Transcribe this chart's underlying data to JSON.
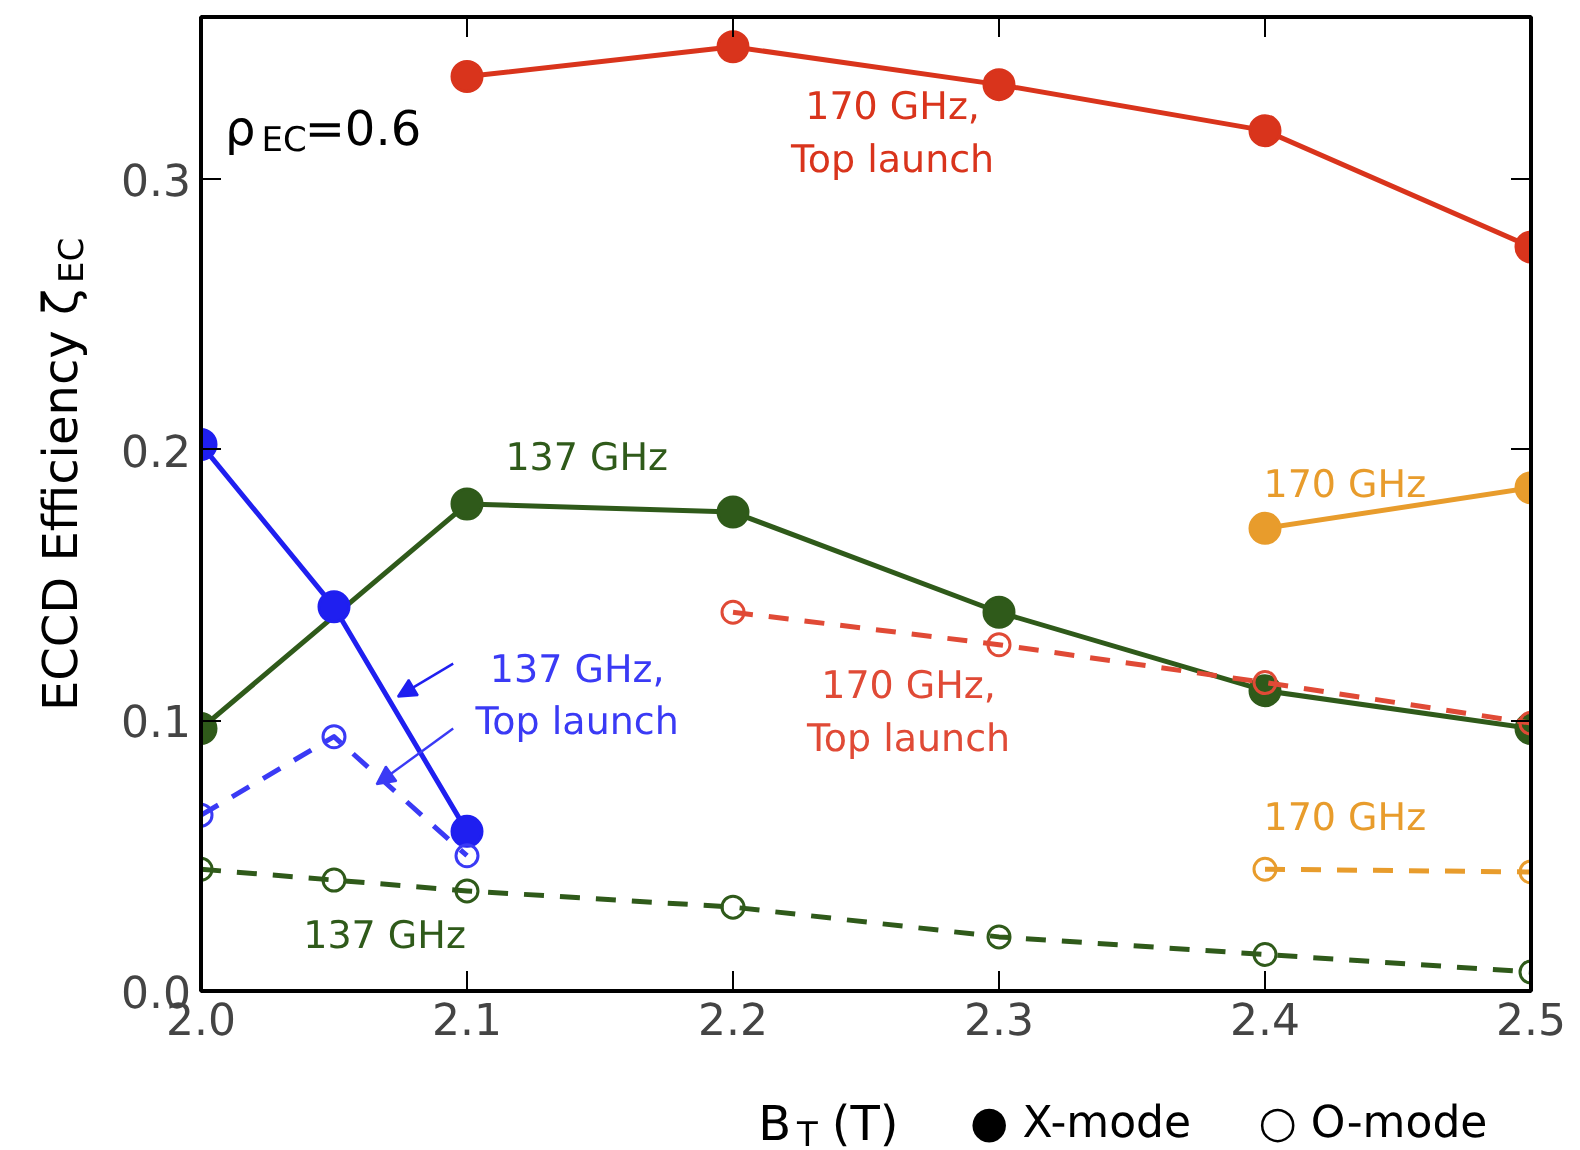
{
  "chart_data": {
    "type": "line",
    "xlabel": "B$_{T}$ (T)",
    "ylabel": "ECCD Efficiency ζ$_{EC}$",
    "xlim": [
      2.0,
      2.5
    ],
    "xticks": [
      {
        "value": 2.0,
        "label": "2.0"
      },
      {
        "value": 2.1,
        "label": "2.1"
      },
      {
        "value": 2.2,
        "label": "2.2"
      },
      {
        "value": 2.3,
        "label": "2.3"
      },
      {
        "value": 2.4,
        "label": "2.4"
      },
      {
        "value": 2.5,
        "label": "2.5"
      }
    ],
    "ylim": [
      0.0,
      0.36
    ],
    "yticks": [
      {
        "value": 0.0,
        "label": "0.0"
      },
      {
        "value": 0.1,
        "label": "0.1"
      },
      {
        "value": 0.2,
        "label": "0.2"
      },
      {
        "value": 0.3,
        "label": "0.3"
      }
    ],
    "grid": false,
    "marker": "circle",
    "series": [
      {
        "color": "#d9341c",
        "line_style": "solid",
        "x": [
          2.1,
          2.2,
          2.3,
          2.4,
          2.5
        ],
        "values": [
          0.338,
          0.349,
          0.335,
          0.318,
          0.275
        ]
      },
      {
        "color": "#e89c2c",
        "line_style": "solid",
        "x": [
          2.4,
          2.5
        ],
        "values": [
          0.171,
          0.186
        ]
      },
      {
        "color": "#2f5a1a",
        "line_style": "solid",
        "x": [
          2.0,
          2.1,
          2.2,
          2.3,
          2.4,
          2.5
        ],
        "values": [
          0.097,
          0.18,
          0.177,
          0.14,
          0.111,
          0.097
        ]
      },
      {
        "color": "#1f1ff0",
        "line_style": "solid",
        "x": [
          2.0,
          2.05,
          2.1
        ],
        "values": [
          0.202,
          0.142,
          0.059
        ]
      },
      {
        "color": "#e04a36",
        "line_style": "dashed",
        "x": [
          2.2,
          2.3,
          2.4,
          2.5
        ],
        "values": [
          0.14,
          0.128,
          0.114,
          0.099
        ]
      },
      {
        "color": "#e89c2c",
        "line_style": "dashed",
        "x": [
          2.4,
          2.5
        ],
        "values": [
          0.045,
          0.044
        ]
      },
      {
        "color": "#2f5a1a",
        "line_style": "dashed",
        "x": [
          2.0,
          2.05,
          2.1,
          2.2,
          2.3,
          2.4,
          2.5
        ],
        "values": [
          0.045,
          0.041,
          0.037,
          0.031,
          0.02,
          0.0135,
          0.007
        ]
      },
      {
        "color": "#3a3af5",
        "line_style": "dashed",
        "x": [
          2.0,
          2.05,
          2.1
        ],
        "values": [
          0.065,
          0.094,
          0.05
        ]
      }
    ],
    "annotations": [
      "ρ$_{EC}$=0.6",
      "170 GHz,\nTop launch",
      "137 GHz",
      "170 GHz",
      {
        "text": "137 GHz,\nTop launch",
        "x": 2.07,
        "y": 0.109
      },
      "170 GHz,\nTop launch",
      "170 GHz",
      "137 GHz",
      "● X-mode",
      "○ O-mode"
    ]
  }
}
